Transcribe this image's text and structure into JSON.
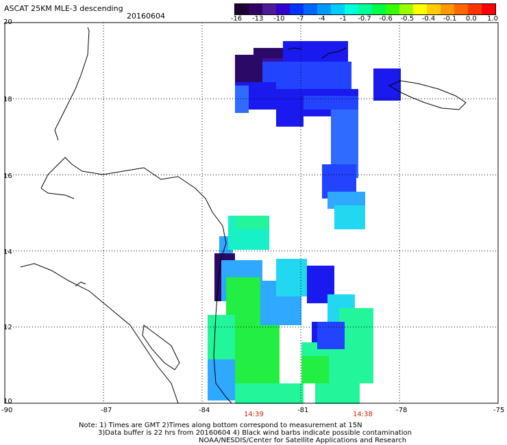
{
  "header": {
    "title": "ASCAT 25KM MLE-3 descending",
    "date": "20160604"
  },
  "colorbar": {
    "labels": [
      "-16",
      "-13",
      "-10",
      "-7",
      "-4",
      "-1",
      "-0.7",
      "-0.6",
      "-0.5",
      "-0.4",
      "-0.1",
      "0.0",
      "1.0"
    ],
    "colors": [
      "#1a0033",
      "#330066",
      "#4d1a99",
      "#3300cc",
      "#0033ff",
      "#0066ff",
      "#0099ff",
      "#00ccff",
      "#00ffdd",
      "#00ff99",
      "#00ff44",
      "#33ff00",
      "#99ff00",
      "#ffff00",
      "#ffcc00",
      "#ff9900",
      "#ff6600",
      "#ff3300",
      "#ff0000"
    ]
  },
  "axes": {
    "lat_labels": [
      "20",
      "18",
      "16",
      "14",
      "12",
      "10"
    ],
    "lon_labels": [
      "-90",
      "-87",
      "-84",
      "-81",
      "-78",
      "-75"
    ]
  },
  "swath_times": [
    "14:39",
    "14:38"
  ],
  "notes": [
    "Note: 1) Times are GMT 2)Times along bottom correspond to measurement at 15N",
    "3)Data buffer is 22 hrs from 20160604 4) Black wind barbs indicate possible contamination",
    "NOAA/NESDIS/Center for Satellite Applications and Research"
  ],
  "palette": {
    "deep_purple": "#2a0a66",
    "purple": "#3a10a0",
    "deep_blue": "#1a1aee",
    "blue": "#2244ff",
    "mid_blue": "#2f6bff",
    "light_blue": "#2fa8ff",
    "cyan": "#22d8f0",
    "aqua": "#18f0c8",
    "mint": "#22f59a",
    "green": "#22ee44",
    "grid": "#000000",
    "coast": "#000000"
  }
}
